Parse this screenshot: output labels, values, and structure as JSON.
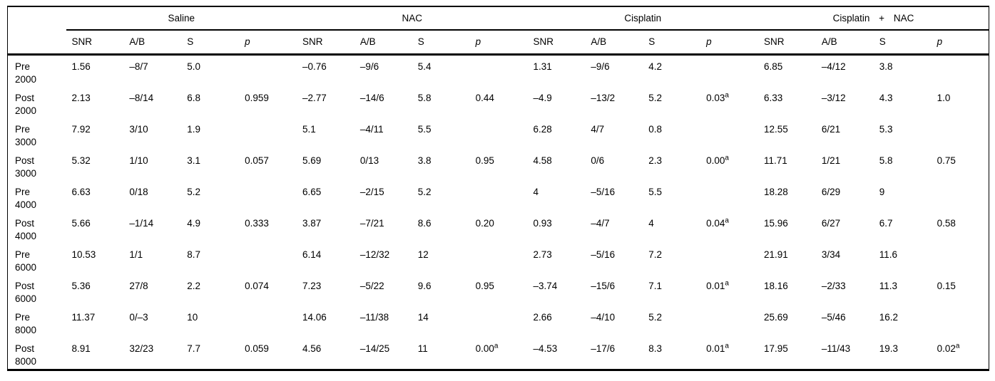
{
  "page": {
    "background": "#ffffff",
    "text_color": "#000000",
    "rule_color": "#000000"
  },
  "table": {
    "corner_label": "",
    "groups": [
      {
        "label": "Saline"
      },
      {
        "label": "NAC"
      },
      {
        "label": "Cisplatin"
      },
      {
        "label": "Cisplatin + NAC"
      }
    ],
    "sub_headers": [
      "SNR",
      "A/B",
      "S",
      "p"
    ],
    "footnote_marker": "a",
    "rows": [
      {
        "period": "Pre",
        "freq": "2000",
        "cells": [
          "1.56",
          "–8/7",
          "5.0",
          "",
          "–0.76",
          "–9/6",
          "5.4",
          "",
          "1.31",
          "–9/6",
          "4.2",
          "",
          "6.85",
          "–4/12",
          "3.8",
          ""
        ]
      },
      {
        "period": "Post",
        "freq": "2000",
        "cells": [
          "2.13",
          "–8/14",
          "6.8",
          "0.959",
          "–2.77",
          "–14/6",
          "5.8",
          "0.44",
          "–4.9",
          "–13/2",
          "5.2",
          "0.03^a",
          "6.33",
          "–3/12",
          "4.3",
          "1.0"
        ]
      },
      {
        "period": "Pre",
        "freq": "3000",
        "cells": [
          "7.92",
          "3/10",
          "1.9",
          "",
          "5.1",
          "–4/11",
          "5.5",
          "",
          "6.28",
          "4/7",
          "0.8",
          "",
          "12.55",
          "6/21",
          "5.3",
          ""
        ]
      },
      {
        "period": "Post",
        "freq": "3000",
        "cells": [
          "5.32",
          "1/10",
          "3.1",
          "0.057",
          "5.69",
          "0/13",
          "3.8",
          "0.95",
          "4.58",
          "0/6",
          "2.3",
          "0.00^a",
          "11.71",
          "1/21",
          "5.8",
          "0.75"
        ]
      },
      {
        "period": "Pre",
        "freq": "4000",
        "cells": [
          "6.63",
          "0/18",
          "5.2",
          "",
          "6.65",
          "–2/15",
          "5.2",
          "",
          "4",
          "–5/16",
          "5.5",
          "",
          "18.28",
          "6/29",
          "9",
          ""
        ]
      },
      {
        "period": "Post",
        "freq": "4000",
        "cells": [
          "5.66",
          "–1/14",
          "4.9",
          "0.333",
          "3.87",
          "–7/21",
          "8.6",
          "0.20",
          "0.93",
          "–4/7",
          "4",
          "0.04^a",
          "15.96",
          "6/27",
          "6.7",
          "0.58"
        ]
      },
      {
        "period": "Pre",
        "freq": "6000",
        "cells": [
          "10.53",
          "1/1",
          "8.7",
          "",
          "6.14",
          "–12/32",
          "12",
          "",
          "2.73",
          "–5/16",
          "7.2",
          "",
          "21.91",
          "3/34",
          "11.6",
          ""
        ]
      },
      {
        "period": "Post",
        "freq": "6000",
        "cells": [
          "5.36",
          "27/8",
          "2.2",
          "0.074",
          "7.23",
          "–5/22",
          "9.6",
          "0.95",
          "–3.74",
          "–15/6",
          "7.1",
          "0.01^a",
          "18.16",
          "–2/33",
          "11.3",
          "0.15"
        ]
      },
      {
        "period": "Pre",
        "freq": "8000",
        "cells": [
          "11.37",
          "0/–3",
          "10",
          "",
          "14.06",
          "–11/38",
          "14",
          "",
          "2.66",
          "–4/10",
          "5.2",
          "",
          "25.69",
          "–5/46",
          "16.2",
          ""
        ]
      },
      {
        "period": "Post",
        "freq": "8000",
        "cells": [
          "8.91",
          "32/23",
          "7.7",
          "0.059",
          "4.56",
          "–14/25",
          "11",
          "0.00^a",
          "–4.53",
          "–17/6",
          "8.3",
          "0.01^a",
          "17.95",
          "–11/43",
          "19.3",
          "0.02^a"
        ]
      }
    ]
  }
}
